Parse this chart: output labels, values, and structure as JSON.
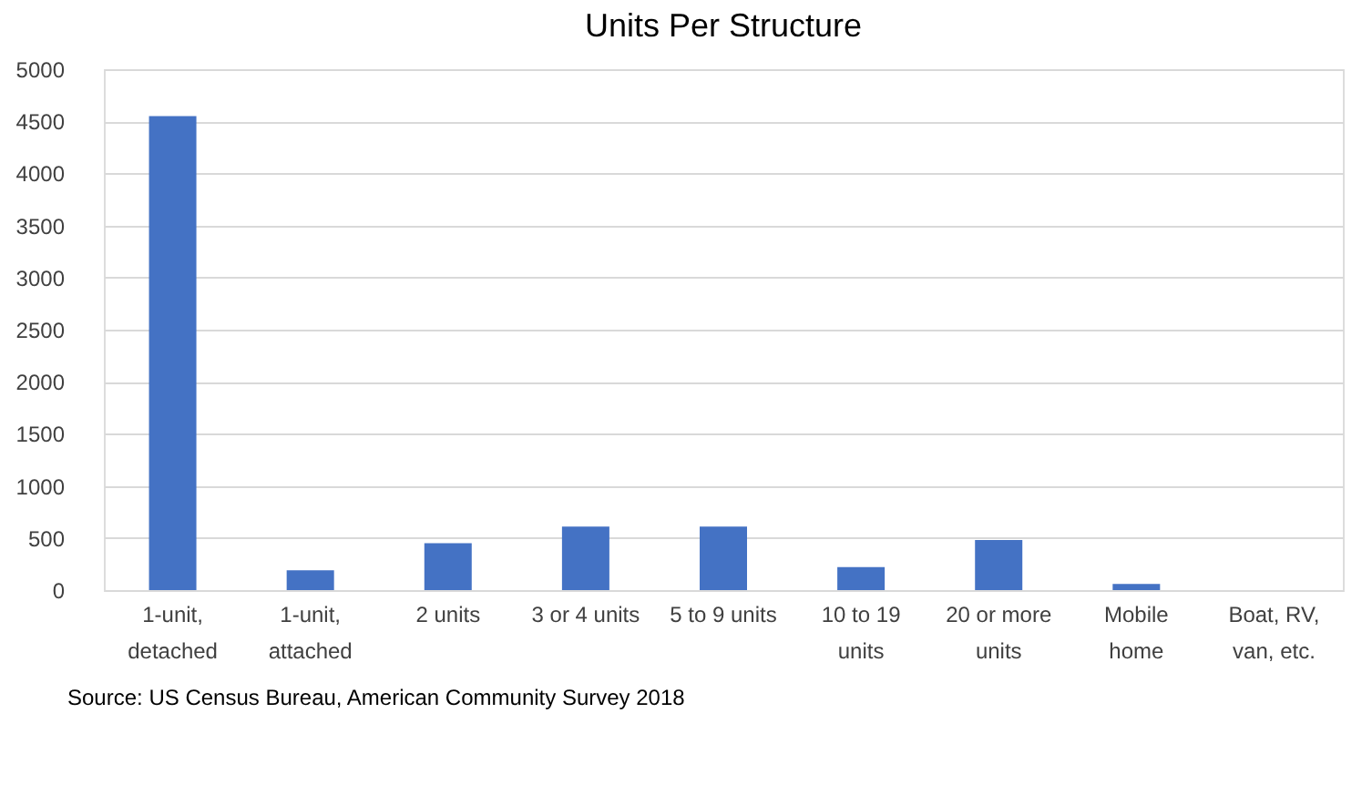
{
  "chart_data": {
    "type": "bar",
    "title": "Units Per Structure",
    "categories": [
      "1-unit, detached",
      "1-unit, attached",
      "2 units",
      "3 or 4 units",
      "5 to 9 units",
      "10 to 19 units",
      "20 or more units",
      "Mobile home",
      "Boat, RV, van, etc."
    ],
    "values": [
      4550,
      190,
      450,
      610,
      610,
      220,
      480,
      60,
      0
    ],
    "color": "#4472c4",
    "ylim": [
      0,
      5000
    ],
    "yticks": [
      0,
      500,
      1000,
      1500,
      2000,
      2500,
      3000,
      3500,
      4000,
      4500,
      5000
    ],
    "grid": "y",
    "annotations": [
      "Source: US Census Bureau, American Community Survey 2018"
    ]
  }
}
